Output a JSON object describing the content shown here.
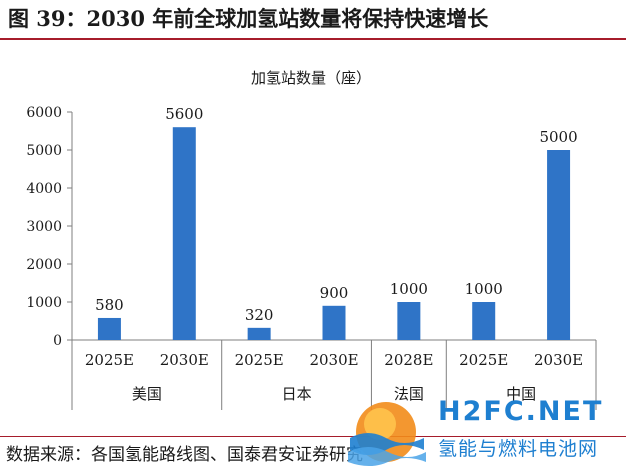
{
  "figure": {
    "title": "图 39：2030 年前全球加氢站数量将保持快速增长",
    "source": "数据来源：各国氢能路线图、国泰君安证券研究"
  },
  "watermark": {
    "brand": "H2FC.NET",
    "subtitle": "氢能与燃料电池网"
  },
  "chart_data": {
    "type": "bar",
    "title": "加氢站数量（座）",
    "xlabel": "",
    "ylabel": "",
    "ylim": [
      0,
      6000
    ],
    "yticks": [
      0,
      1000,
      2000,
      3000,
      4000,
      5000,
      6000
    ],
    "grid": false,
    "legend": "none",
    "bar_color": "#2f74c7",
    "groups": [
      {
        "name": "美国",
        "categories": [
          "2025E",
          "2030E"
        ],
        "values": [
          580,
          5600
        ]
      },
      {
        "name": "日本",
        "categories": [
          "2025E",
          "2030E"
        ],
        "values": [
          320,
          900
        ]
      },
      {
        "name": "法国",
        "categories": [
          "2028E"
        ],
        "values": [
          1000
        ]
      },
      {
        "name": "中国",
        "categories": [
          "2025E",
          "2030E"
        ],
        "values": [
          1000,
          5000
        ]
      }
    ]
  }
}
